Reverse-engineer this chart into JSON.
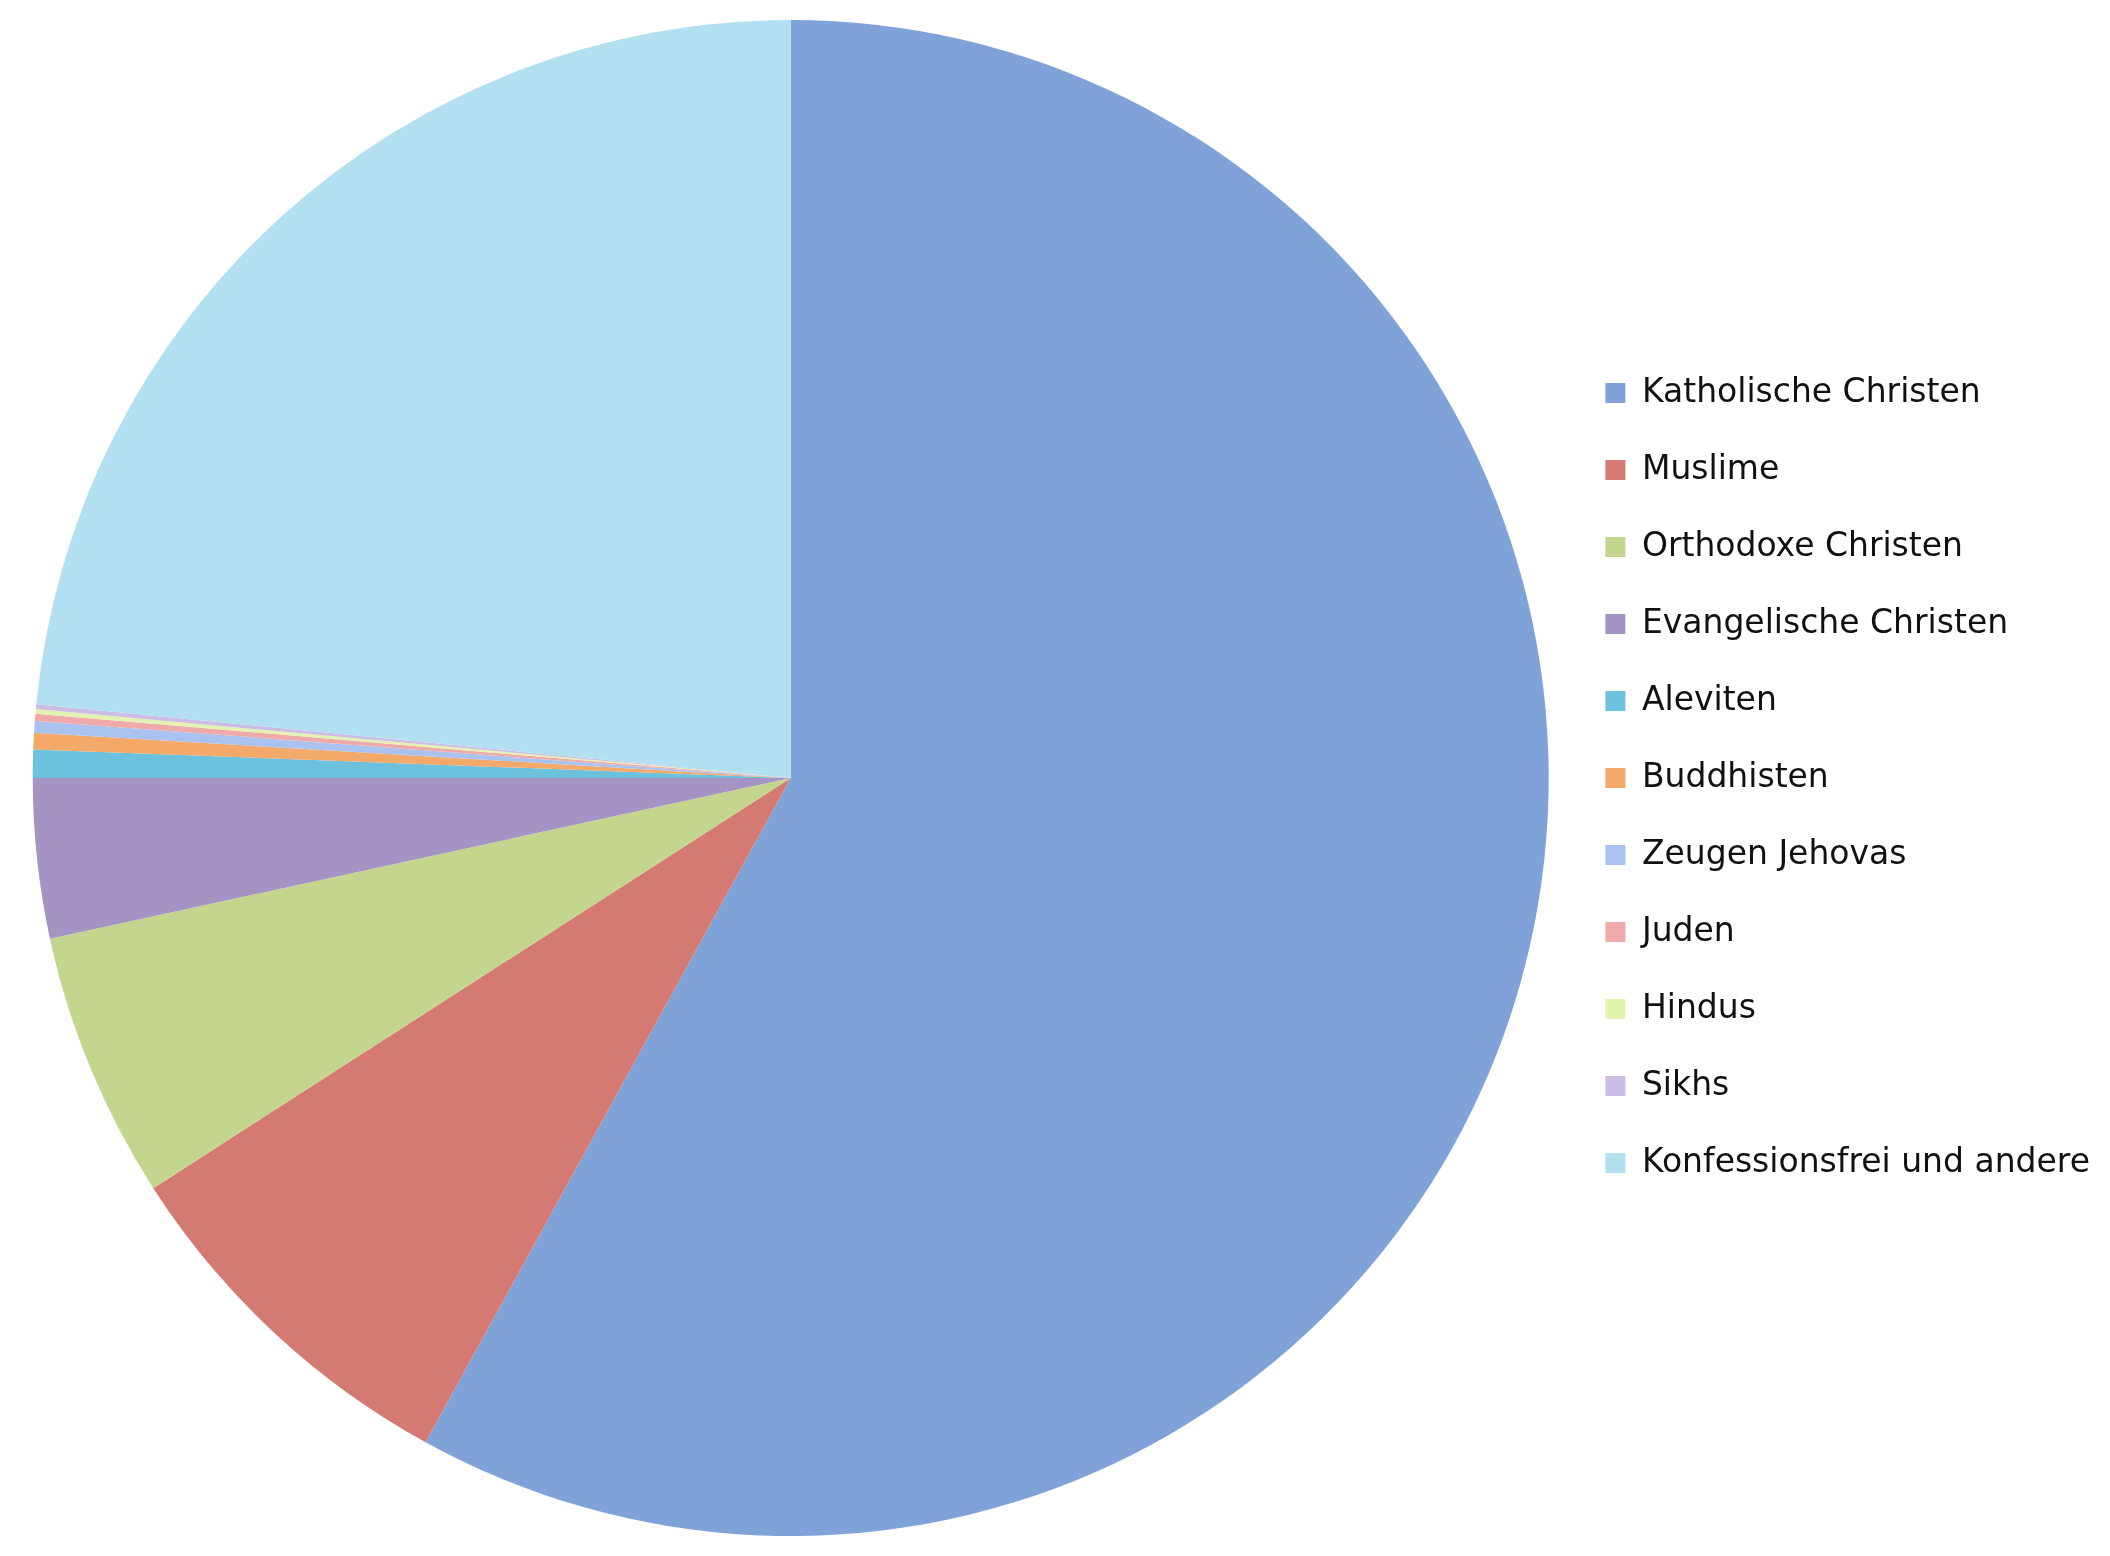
{
  "chart_data": {
    "type": "pie",
    "categories": [
      "Katholische Christen",
      "Muslime",
      "Orthodoxe Christen",
      "Evangelische Christen",
      "Aleviten",
      "Buddhisten",
      "Zeugen Jehovas",
      "Juden",
      "Hindus",
      "Sikhs",
      "Konfessionsfrei und andere"
    ],
    "values": [
      58.0,
      7.9,
      5.7,
      3.4,
      0.6,
      0.35,
      0.25,
      0.15,
      0.1,
      0.1,
      23.45
    ],
    "colors": [
      "#7fa3d8",
      "#d47a72",
      "#c4d68e",
      "#a593c4",
      "#6cc2dc",
      "#f2a96a",
      "#a9c2ef",
      "#eeaaa8",
      "#e2f2b0",
      "#cbbde3",
      "#b3e0f0"
    ],
    "legend": "right"
  }
}
